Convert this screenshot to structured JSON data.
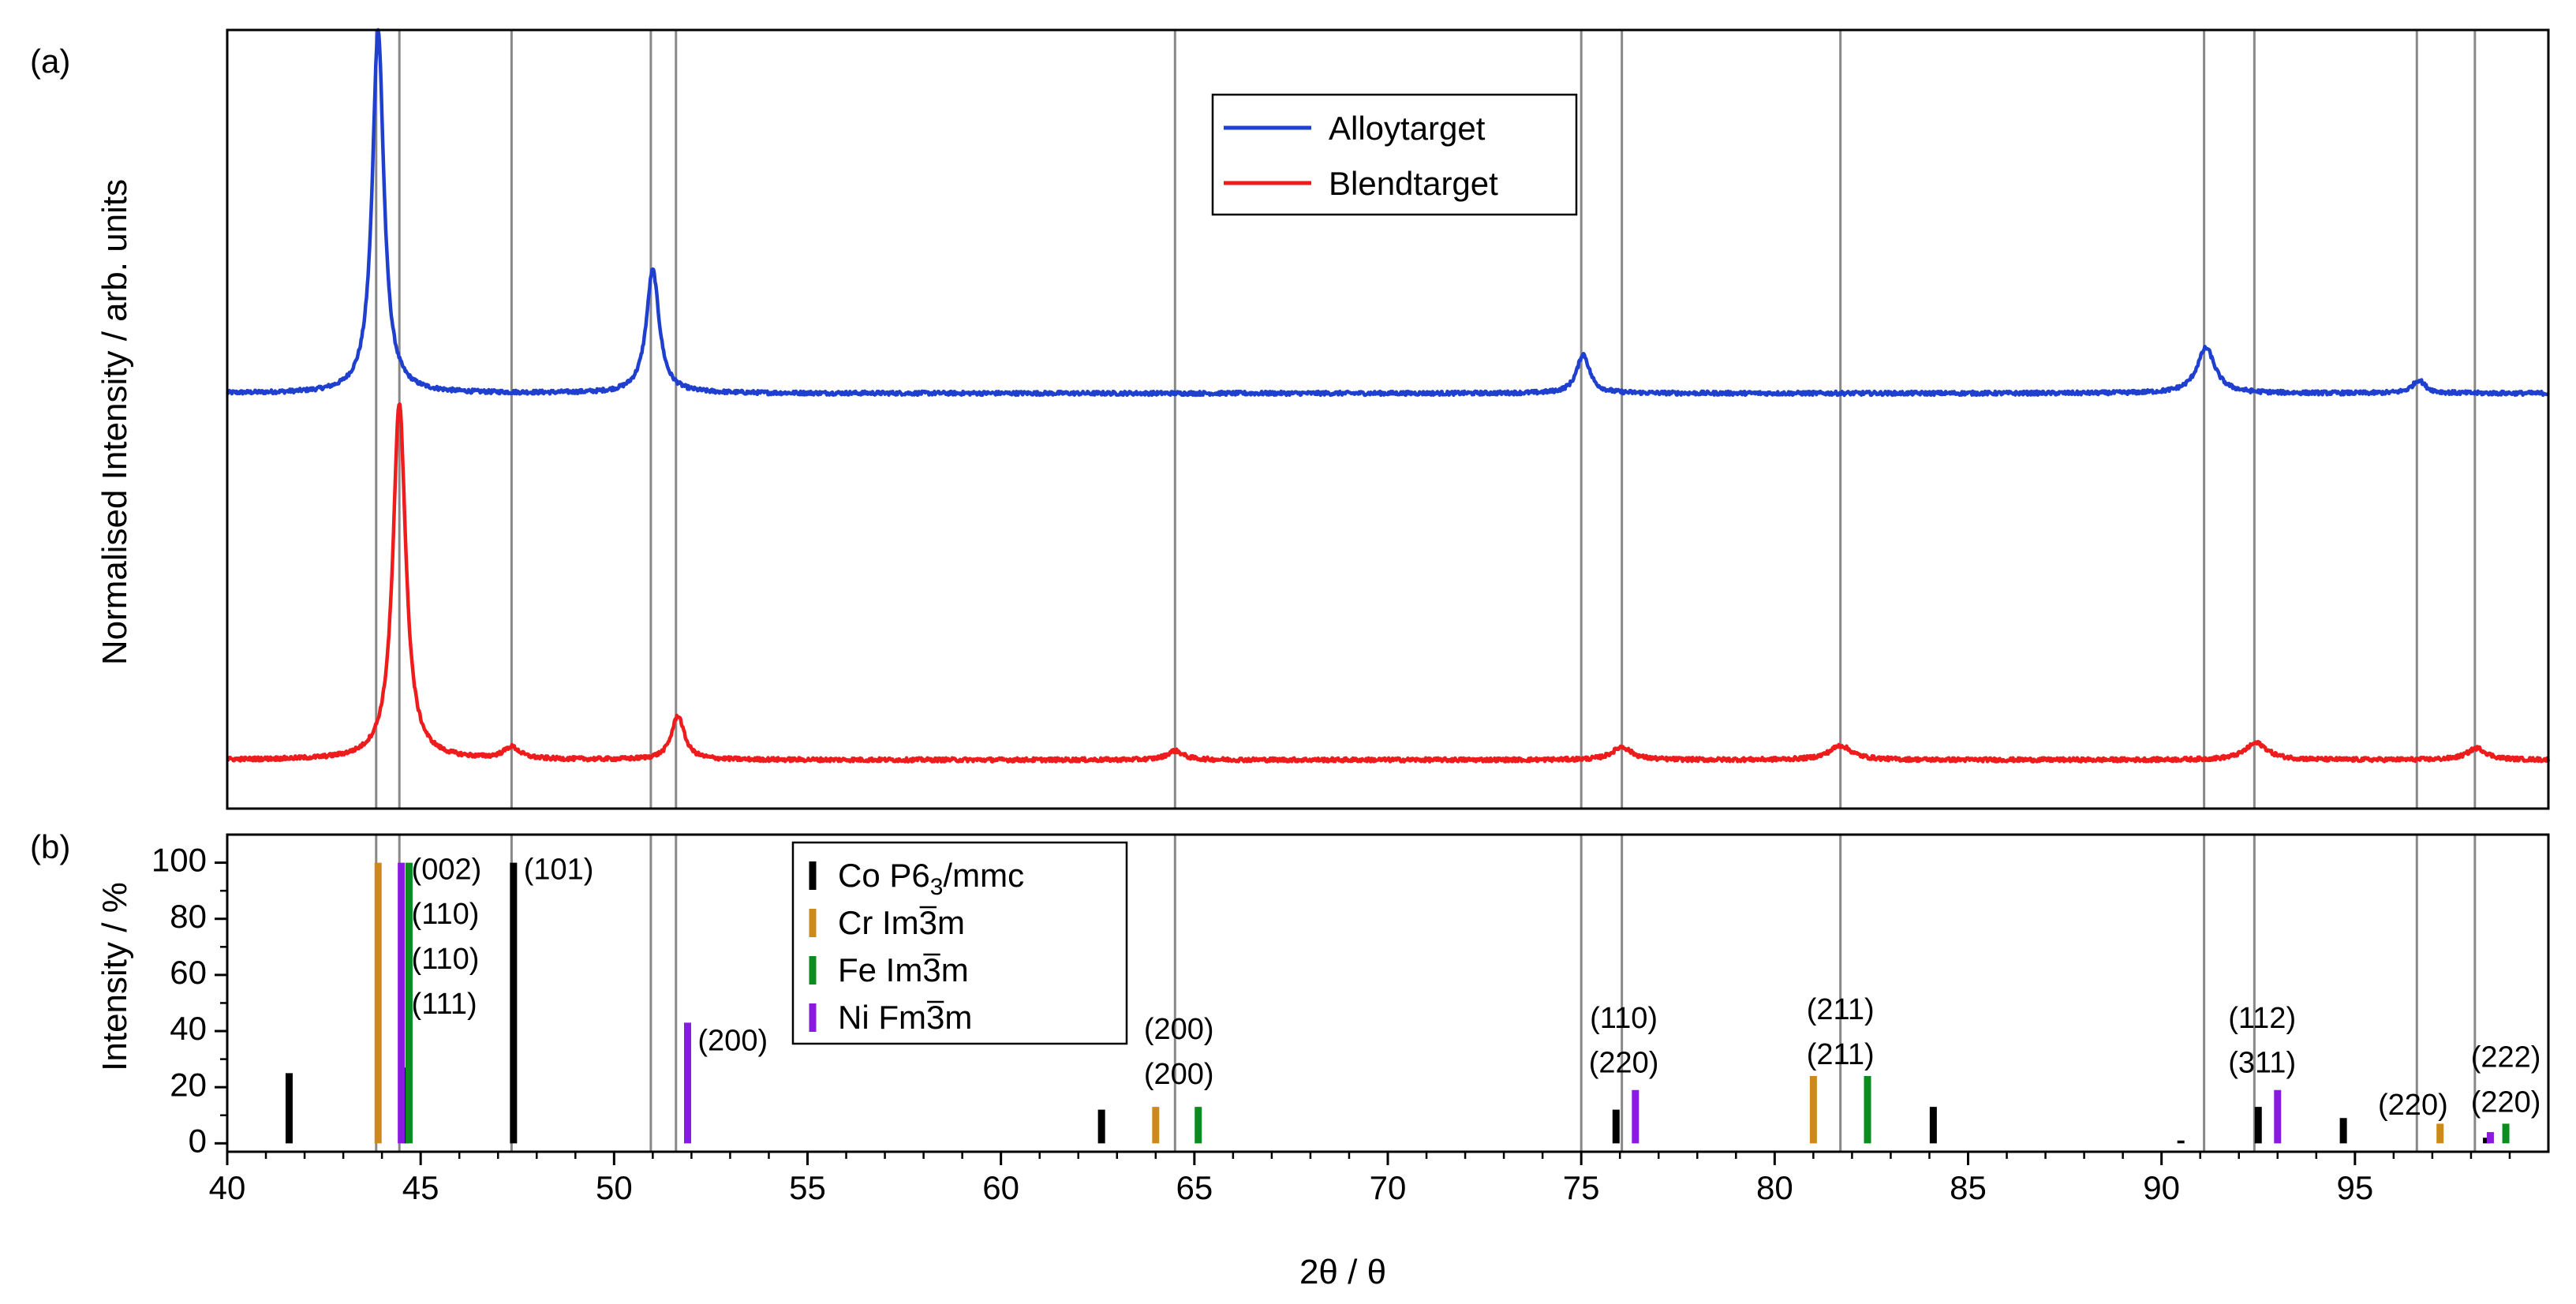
{
  "chart_data": [
    {
      "panel": "a",
      "panel_label": "(a)",
      "type": "line",
      "ylabel": "Normalised Intensity / arb. units",
      "xlim": [
        40,
        100
      ],
      "ylim": [
        0,
        1.2
      ],
      "reference_lines": [
        43.85,
        44.45,
        47.35,
        50.95,
        51.6,
        64.5,
        75.0,
        76.05,
        81.7,
        91.1,
        92.4,
        96.6,
        98.1
      ],
      "series": [
        {
          "name": "Alloytarget",
          "color": "#1f3fcf",
          "baseline": 0.64,
          "noise": 0.003,
          "peaks": [
            {
              "center": 43.9,
              "height": 0.56,
              "width": 0.18
            },
            {
              "center": 51.0,
              "height": 0.19,
              "width": 0.2
            },
            {
              "center": 75.05,
              "height": 0.06,
              "width": 0.2
            },
            {
              "center": 91.15,
              "height": 0.07,
              "width": 0.28
            },
            {
              "center": 96.65,
              "height": 0.02,
              "width": 0.2
            }
          ]
        },
        {
          "name": "Blendtarget",
          "color": "#ee1c1c",
          "baseline": 0.075,
          "noise": 0.003,
          "peaks": [
            {
              "center": 44.45,
              "height": 0.55,
              "width": 0.2
            },
            {
              "center": 47.35,
              "height": 0.018,
              "width": 0.25
            },
            {
              "center": 51.65,
              "height": 0.068,
              "width": 0.2
            },
            {
              "center": 64.5,
              "height": 0.014,
              "width": 0.25
            },
            {
              "center": 76.05,
              "height": 0.02,
              "width": 0.3
            },
            {
              "center": 81.7,
              "height": 0.022,
              "width": 0.35
            },
            {
              "center": 92.45,
              "height": 0.026,
              "width": 0.35
            },
            {
              "center": 98.15,
              "height": 0.018,
              "width": 0.3
            }
          ]
        }
      ],
      "legend": {
        "placement": "top-center",
        "entries": [
          {
            "label": "Alloytarget",
            "color": "#1f3fcf"
          },
          {
            "label": "Blendtarget",
            "color": "#ee1c1c"
          }
        ]
      }
    },
    {
      "panel": "b",
      "panel_label": "(b)",
      "type": "bar",
      "ylabel": "Intensity / %",
      "xlabel": "2θ / θ",
      "xlim": [
        40,
        100
      ],
      "ylim": [
        -3,
        110
      ],
      "x_ticks": [
        40,
        45,
        50,
        55,
        60,
        65,
        70,
        75,
        80,
        85,
        90,
        95
      ],
      "y_ticks": [
        0,
        20,
        40,
        60,
        80,
        100
      ],
      "reference_lines": [
        43.85,
        44.45,
        47.35,
        50.95,
        51.6,
        64.5,
        75.0,
        76.05,
        81.7,
        91.1,
        92.4,
        96.6,
        98.1
      ],
      "series": [
        {
          "name": "Co P63/mmc",
          "color": "#000000",
          "sticks": [
            {
              "x": 41.6,
              "y": 25
            },
            {
              "x": 44.6,
              "y": 27
            },
            {
              "x": 47.4,
              "y": 100
            },
            {
              "x": 62.6,
              "y": 12
            },
            {
              "x": 75.9,
              "y": 12
            },
            {
              "x": 84.1,
              "y": 13
            },
            {
              "x": 90.5,
              "y": 1
            },
            {
              "x": 92.5,
              "y": 13
            },
            {
              "x": 94.7,
              "y": 9
            },
            {
              "x": 98.4,
              "y": 2
            }
          ]
        },
        {
          "name": "Cr Im3m",
          "color": "#cc8a1a",
          "sticks": [
            {
              "x": 43.9,
              "y": 100
            },
            {
              "x": 64.0,
              "y": 13
            },
            {
              "x": 81.0,
              "y": 24
            },
            {
              "x": 97.2,
              "y": 7
            }
          ]
        },
        {
          "name": "Fe Im3m",
          "color": "#0a8c1e",
          "sticks": [
            {
              "x": 44.7,
              "y": 100
            },
            {
              "x": 65.1,
              "y": 13
            },
            {
              "x": 82.4,
              "y": 24
            },
            {
              "x": 98.9,
              "y": 7
            }
          ]
        },
        {
          "name": "Ni Fm3m",
          "color": "#8a1ae0",
          "sticks": [
            {
              "x": 44.5,
              "y": 100
            },
            {
              "x": 51.9,
              "y": 43
            },
            {
              "x": 76.4,
              "y": 19
            },
            {
              "x": 93.0,
              "y": 19
            },
            {
              "x": 98.5,
              "y": 4
            }
          ]
        }
      ],
      "legend": {
        "placement": "top-center",
        "entries": [
          {
            "key": "co",
            "label_prefix": "Co P6",
            "label_sub": "3",
            "label_suffix": "/mmc",
            "color": "#000000"
          },
          {
            "key": "cr",
            "label_prefix": "Cr Im",
            "label_bar": "3",
            "label_suffix": "m",
            "color": "#cc8a1a"
          },
          {
            "key": "fe",
            "label_prefix": "Fe Im",
            "label_bar": "3",
            "label_suffix": "m",
            "color": "#0a8c1e"
          },
          {
            "key": "ni",
            "label_prefix": "Ni Fm",
            "label_bar": "3",
            "label_suffix": "m",
            "color": "#8a1ae0"
          }
        ]
      },
      "annotations": [
        {
          "text": "(002)",
          "x": 44.6,
          "y": 97,
          "color": "#000000",
          "anchor": "start"
        },
        {
          "text": "(110)",
          "x": 44.6,
          "y": 81,
          "color": "#cc8a1a",
          "anchor": "start"
        },
        {
          "text": "(110)",
          "x": 44.6,
          "y": 65,
          "color": "#0a8c1e",
          "anchor": "start"
        },
        {
          "text": "(111)",
          "x": 44.6,
          "y": 49,
          "color": "#8a1ae0",
          "anchor": "start"
        },
        {
          "text": "(101)",
          "x": 47.5,
          "y": 97,
          "color": "#000000",
          "anchor": "start"
        },
        {
          "text": "(200)",
          "x": 52.0,
          "y": 36,
          "color": "#8a1ae0",
          "anchor": "start"
        },
        {
          "text": "(200)",
          "x": 64.6,
          "y": 40,
          "color": "#cc8a1a",
          "anchor": "middle"
        },
        {
          "text": "(200)",
          "x": 64.6,
          "y": 24,
          "color": "#0a8c1e",
          "anchor": "middle"
        },
        {
          "text": "(110)",
          "x": 76.1,
          "y": 44,
          "color": "#000000",
          "anchor": "middle"
        },
        {
          "text": "(220)",
          "x": 76.1,
          "y": 28,
          "color": "#8a1ae0",
          "anchor": "middle"
        },
        {
          "text": "(211)",
          "x": 81.7,
          "y": 47,
          "color": "#cc8a1a",
          "anchor": "middle"
        },
        {
          "text": "(211)",
          "x": 81.7,
          "y": 31,
          "color": "#0a8c1e",
          "anchor": "middle"
        },
        {
          "text": "(112)",
          "x": 92.6,
          "y": 44,
          "color": "#000000",
          "anchor": "middle"
        },
        {
          "text": "(311)",
          "x": 92.6,
          "y": 28,
          "color": "#8a1ae0",
          "anchor": "middle"
        },
        {
          "text": "(220)",
          "x": 96.5,
          "y": 13,
          "color": "#cc8a1a",
          "anchor": "middle"
        },
        {
          "text": "(222)",
          "x": 98.9,
          "y": 30,
          "color": "#8a1ae0",
          "anchor": "middle"
        },
        {
          "text": "(220)",
          "x": 98.9,
          "y": 14,
          "color": "#0a8c1e",
          "anchor": "middle"
        }
      ]
    }
  ]
}
